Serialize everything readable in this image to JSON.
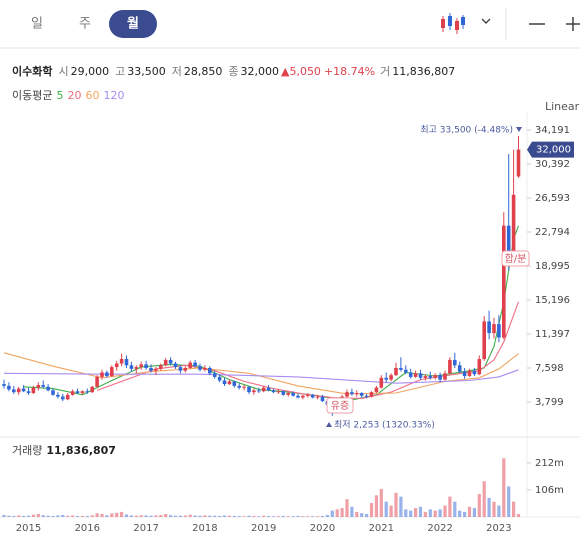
{
  "header": {
    "tabs": [
      "일",
      "주",
      "월"
    ],
    "selected_tab": 2
  },
  "quote": {
    "name": "이수화학",
    "items": [
      {
        "label": "시",
        "value": "29,000"
      },
      {
        "label": "고",
        "value": "33,500"
      },
      {
        "label": "저",
        "value": "28,850"
      },
      {
        "label": "종",
        "value": "32,000"
      }
    ],
    "change": "▲5,050",
    "change_pct": "+18.74%",
    "volume_label": "거",
    "volume": "11,836,807"
  },
  "chart_data": {
    "type": "candlestick",
    "scale_label": "Linear",
    "ma_title": "이동평균",
    "up_color": "#e0404c",
    "down_color": "#2f67d6",
    "categories": [
      null,
      null,
      null,
      null,
      null,
      "2015",
      null,
      null,
      null,
      null,
      null,
      null,
      null,
      null,
      null,
      null,
      null,
      "2016",
      null,
      null,
      null,
      null,
      null,
      null,
      null,
      null,
      null,
      null,
      null,
      "2017",
      null,
      null,
      null,
      null,
      null,
      null,
      null,
      null,
      null,
      null,
      null,
      "2018",
      null,
      null,
      null,
      null,
      null,
      null,
      null,
      null,
      null,
      null,
      null,
      "2019",
      null,
      null,
      null,
      null,
      null,
      null,
      null,
      null,
      null,
      null,
      null,
      "2020",
      null,
      null,
      null,
      null,
      null,
      null,
      null,
      null,
      null,
      null,
      null,
      "2021",
      null,
      null,
      null,
      null,
      null,
      null,
      null,
      null,
      null,
      null,
      null,
      "2022",
      null,
      null,
      null,
      null,
      null,
      null,
      null,
      null,
      null,
      null,
      null,
      "2023",
      null,
      null,
      null,
      null
    ],
    "ohlc": [
      [
        5800,
        6300,
        5300,
        5600
      ],
      [
        5600,
        6000,
        5000,
        5200
      ],
      [
        5200,
        5600,
        4700,
        4900
      ],
      [
        4900,
        5500,
        4600,
        5300
      ],
      [
        5300,
        5700,
        4900,
        5000
      ],
      [
        5000,
        5400,
        4600,
        4800
      ],
      [
        4800,
        5600,
        4700,
        5400
      ],
      [
        5400,
        6000,
        5100,
        5700
      ],
      [
        5700,
        6200,
        5300,
        5500
      ],
      [
        5500,
        5800,
        5000,
        5100
      ],
      [
        5100,
        5300,
        4500,
        4600
      ],
      [
        4600,
        4900,
        4200,
        4400
      ],
      [
        4400,
        4700,
        3900,
        4100
      ],
      [
        4100,
        4800,
        4000,
        4600
      ],
      [
        4600,
        5200,
        4500,
        5000
      ],
      [
        5000,
        5300,
        4700,
        4800
      ],
      [
        4800,
        5100,
        4600,
        5000
      ],
      [
        5000,
        5300,
        4700,
        4900
      ],
      [
        4900,
        5600,
        4800,
        5500
      ],
      [
        5500,
        6800,
        5400,
        6600
      ],
      [
        6600,
        7400,
        6300,
        7100
      ],
      [
        7100,
        7300,
        6500,
        6700
      ],
      [
        6700,
        7900,
        6600,
        7700
      ],
      [
        7700,
        8400,
        7300,
        8100
      ],
      [
        8100,
        9200,
        7800,
        8600
      ],
      [
        8600,
        9000,
        7600,
        7900
      ],
      [
        7900,
        8300,
        7200,
        7500
      ],
      [
        7500,
        7900,
        7000,
        7700
      ],
      [
        7700,
        8300,
        7400,
        8000
      ],
      [
        8000,
        8400,
        7400,
        7600
      ],
      [
        7600,
        8000,
        7100,
        7300
      ],
      [
        7300,
        7700,
        6800,
        7500
      ],
      [
        7500,
        8100,
        7300,
        7900
      ],
      [
        7900,
        8700,
        7800,
        8500
      ],
      [
        8500,
        8800,
        7900,
        8100
      ],
      [
        8100,
        8300,
        7500,
        7700
      ],
      [
        7700,
        7900,
        7000,
        7300
      ],
      [
        7300,
        7800,
        7100,
        7600
      ],
      [
        7600,
        8400,
        7500,
        8200
      ],
      [
        8200,
        8500,
        7700,
        7800
      ],
      [
        7800,
        8100,
        7200,
        7400
      ],
      [
        7400,
        7900,
        7200,
        7600
      ],
      [
        7600,
        7800,
        6800,
        7000
      ],
      [
        7000,
        7300,
        6400,
        6600
      ],
      [
        6600,
        6900,
        6000,
        6200
      ],
      [
        6200,
        6500,
        5600,
        5800
      ],
      [
        5800,
        6300,
        5700,
        6100
      ],
      [
        6100,
        6200,
        5400,
        5600
      ],
      [
        5600,
        5900,
        5200,
        5400
      ],
      [
        5400,
        5700,
        5100,
        5500
      ],
      [
        5500,
        5600,
        4700,
        4900
      ],
      [
        4900,
        5300,
        4600,
        5100
      ],
      [
        5100,
        5400,
        4800,
        5000
      ],
      [
        5000,
        5600,
        4900,
        5400
      ],
      [
        5400,
        5700,
        5000,
        5100
      ],
      [
        5100,
        5300,
        4800,
        4900
      ],
      [
        4900,
        5200,
        4700,
        5000
      ],
      [
        5000,
        5100,
        4500,
        4600
      ],
      [
        4600,
        4900,
        4400,
        4800
      ],
      [
        4800,
        5000,
        4400,
        4500
      ],
      [
        4500,
        4700,
        4200,
        4300
      ],
      [
        4300,
        4600,
        4100,
        4500
      ],
      [
        4500,
        4800,
        4300,
        4600
      ],
      [
        4600,
        4700,
        4200,
        4300
      ],
      [
        4300,
        4600,
        4100,
        4400
      ],
      [
        4400,
        4600,
        3800,
        3900
      ],
      [
        3900,
        4100,
        3400,
        3500
      ],
      [
        3500,
        3900,
        2253,
        3300
      ],
      [
        3300,
        4200,
        3200,
        4000
      ],
      [
        4000,
        4600,
        3900,
        4400
      ],
      [
        4400,
        5200,
        4300,
        4900
      ],
      [
        4900,
        5300,
        4500,
        4700
      ],
      [
        4700,
        5100,
        4400,
        4800
      ],
      [
        4800,
        4900,
        4300,
        4500
      ],
      [
        4500,
        4700,
        4200,
        4400
      ],
      [
        4400,
        5000,
        4300,
        4900
      ],
      [
        4900,
        5600,
        4800,
        5400
      ],
      [
        5400,
        6800,
        5300,
        6500
      ],
      [
        6500,
        7100,
        6000,
        6300
      ],
      [
        6300,
        7000,
        6100,
        6800
      ],
      [
        6800,
        8200,
        6700,
        7600
      ],
      [
        7600,
        8800,
        7200,
        7400
      ],
      [
        7400,
        7900,
        6900,
        7100
      ],
      [
        7100,
        7500,
        6400,
        6600
      ],
      [
        6600,
        7300,
        6500,
        7000
      ],
      [
        7000,
        7400,
        6300,
        6500
      ],
      [
        6500,
        6900,
        6200,
        6700
      ],
      [
        6700,
        7200,
        6300,
        6500
      ],
      [
        6500,
        7000,
        6300,
        6800
      ],
      [
        6800,
        7100,
        6000,
        6300
      ],
      [
        6300,
        7300,
        6200,
        7000
      ],
      [
        7000,
        8800,
        6900,
        8500
      ],
      [
        8500,
        9300,
        7600,
        7900
      ],
      [
        7900,
        8300,
        7000,
        7200
      ],
      [
        7200,
        7600,
        6400,
        6700
      ],
      [
        6700,
        7500,
        6600,
        7300
      ],
      [
        7300,
        7600,
        6700,
        6900
      ],
      [
        6900,
        9000,
        6800,
        8600
      ],
      [
        8600,
        13400,
        8400,
        12800
      ],
      [
        12800,
        14000,
        10800,
        11500
      ],
      [
        11500,
        13200,
        10900,
        12500
      ],
      [
        12500,
        13500,
        10500,
        11000
      ],
      [
        11000,
        25000,
        10800,
        23500
      ],
      [
        23500,
        31500,
        18500,
        20000
      ],
      [
        20000,
        32000,
        19500,
        26950
      ],
      [
        29000,
        33500,
        28850,
        32000
      ]
    ],
    "ma": [
      {
        "name": "5",
        "color": "#3cae4a",
        "x": [
          4,
          10,
          16,
          22,
          28,
          34,
          40,
          46,
          52,
          58,
          64,
          70,
          76,
          82,
          88,
          94,
          98,
          100,
          102,
          104,
          105
        ],
        "values": [
          5500,
          5300,
          4600,
          6200,
          7700,
          8000,
          7800,
          6300,
          5200,
          4900,
          4500,
          3900,
          4600,
          7100,
          6700,
          7200,
          7600,
          10000,
          15000,
          22000,
          23500
        ]
      },
      {
        "name": "20",
        "color": "#ee6d82",
        "x": [
          19,
          25,
          31,
          37,
          43,
          49,
          55,
          61,
          67,
          73,
          79,
          85,
          91,
          97,
          100,
          102,
          104,
          105
        ],
        "values": [
          5100,
          6300,
          7500,
          7900,
          7300,
          6100,
          5300,
          4700,
          4300,
          4200,
          4900,
          6300,
          6800,
          7300,
          8500,
          10500,
          13500,
          15000
        ]
      },
      {
        "name": "60",
        "color": "#f2a560",
        "x": [
          0,
          10,
          20,
          30,
          40,
          50,
          60,
          70,
          80,
          90,
          97,
          101,
          105
        ],
        "values": [
          9300,
          7800,
          6500,
          7200,
          7600,
          7000,
          5600,
          4700,
          4800,
          6100,
          6500,
          7500,
          9200
        ]
      },
      {
        "name": "120",
        "color": "#a88cf2",
        "x": [
          0,
          20,
          40,
          60,
          80,
          95,
          101,
          105
        ],
        "values": [
          7000,
          6900,
          6900,
          6600,
          5900,
          6200,
          6600,
          7400
        ]
      }
    ],
    "ylim": [
      447,
      35530
    ],
    "yticks": [
      {
        "value": 3799,
        "label": "3,799"
      },
      {
        "value": 7598,
        "label": "7,598"
      },
      {
        "value": 11397,
        "label": "11,397"
      },
      {
        "value": 15196,
        "label": "15,196"
      },
      {
        "value": 18995,
        "label": "18,995"
      },
      {
        "value": 22794,
        "label": "22,794"
      },
      {
        "value": 26593,
        "label": "26,593"
      },
      {
        "value": 30392,
        "label": "30,392"
      },
      {
        "value": 34191,
        "label": "34,191"
      }
    ],
    "price_tag": {
      "value": 32000,
      "label": "32,000"
    },
    "annotations": {
      "high": "최고 33,500 (-4.48%)",
      "low": "최저 2,253 (1320.33%)",
      "rights_issue": "유증",
      "merger": "합/분"
    },
    "volume": {
      "title": "거래량",
      "total": "11,836,807",
      "values": [
        8,
        5,
        4,
        6,
        4,
        5,
        9,
        12,
        7,
        5,
        4,
        6,
        8,
        5,
        6,
        4,
        4,
        4,
        7,
        15,
        12,
        7,
        14,
        16,
        20,
        10,
        6,
        5,
        7,
        6,
        5,
        6,
        8,
        12,
        7,
        5,
        5,
        6,
        9,
        6,
        5,
        6,
        5,
        5,
        4,
        6,
        5,
        4,
        4,
        3,
        5,
        4,
        3,
        5,
        4,
        3,
        3,
        4,
        3,
        3,
        4,
        3,
        3,
        3,
        3,
        4,
        8,
        25,
        30,
        35,
        70,
        40,
        20,
        15,
        12,
        55,
        85,
        110,
        60,
        45,
        95,
        80,
        30,
        25,
        35,
        40,
        20,
        30,
        25,
        30,
        45,
        80,
        60,
        25,
        20,
        40,
        35,
        90,
        140,
        75,
        60,
        45,
        230,
        120,
        60,
        11.84
      ],
      "ylim": [
        0,
        302
      ],
      "yticks": [
        {
          "value": 106,
          "label": "106m"
        },
        {
          "value": 212,
          "label": "212m"
        }
      ]
    }
  }
}
